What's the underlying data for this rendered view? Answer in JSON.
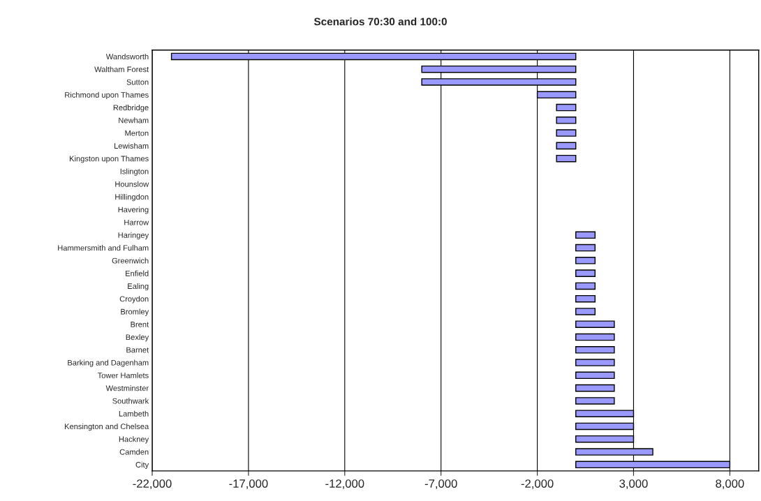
{
  "chart_data": {
    "type": "bar",
    "orientation": "horizontal",
    "title": "Scenarios 70:30 and 100:0",
    "categories": [
      "Wandsworth",
      "Waltham Forest",
      "Sutton",
      "Richmond upon Thames",
      "Redbridge",
      "Newham",
      "Merton",
      "Lewisham",
      "Kingston upon Thames",
      "Islington",
      "Hounslow",
      "Hillingdon",
      "Havering",
      "Harrow",
      "Haringey",
      "Hammersmith and Fulham",
      "Greenwich",
      "Enfield",
      "Ealing",
      "Croydon",
      "Bromley",
      "Brent",
      "Bexley",
      "Barnet",
      "Barking and Dagenham",
      "Tower Hamlets",
      "Westminster",
      "Southwark",
      "Lambeth",
      "Kensington and Chelsea",
      "Hackney",
      "Camden",
      "City"
    ],
    "values": [
      -21000,
      -8000,
      -8000,
      -2000,
      -1000,
      -1000,
      -1000,
      -1000,
      -1000,
      0,
      0,
      0,
      0,
      0,
      1000,
      1000,
      1000,
      1000,
      1000,
      1000,
      1000,
      2000,
      2000,
      2000,
      2000,
      2000,
      2000,
      2000,
      3000,
      3000,
      3000,
      4000,
      8000
    ],
    "color": "#9999ff",
    "xlim": [
      -22000,
      9500
    ],
    "xticks": [
      {
        "value": -22000,
        "label": "-22,000"
      },
      {
        "value": -17000,
        "label": "-17,000"
      },
      {
        "value": -12000,
        "label": "-12,000"
      },
      {
        "value": -7000,
        "label": "-7,000"
      },
      {
        "value": -2000,
        "label": "-2,000"
      },
      {
        "value": 3000,
        "label": "3,000"
      },
      {
        "value": 8000,
        "label": "8,000"
      }
    ],
    "grid": "x"
  }
}
